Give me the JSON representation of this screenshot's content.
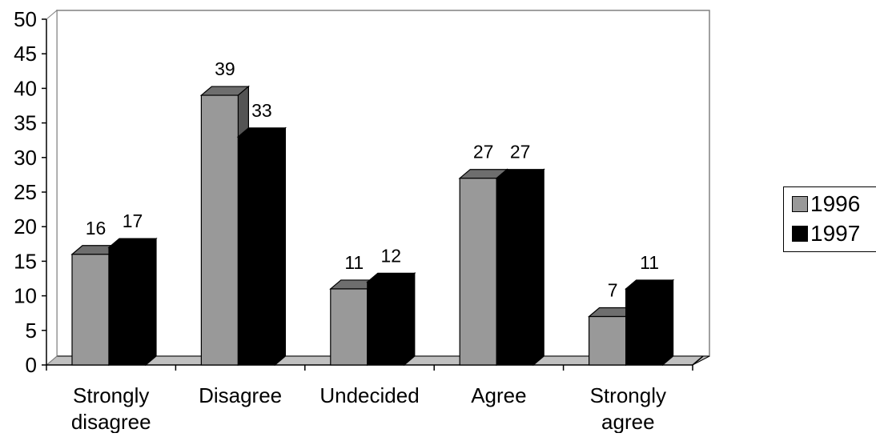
{
  "chart_data": {
    "type": "bar",
    "categories": [
      [
        "Strongly",
        "disagree"
      ],
      [
        "Disagree"
      ],
      [
        "Undecided"
      ],
      [
        "Agree"
      ],
      [
        "Strongly",
        "agree"
      ]
    ],
    "series": [
      {
        "name": "1996",
        "values": [
          16,
          39,
          11,
          27,
          7
        ],
        "color": "#999999"
      },
      {
        "name": "1997",
        "values": [
          17,
          33,
          12,
          27,
          11
        ],
        "color": "#000000"
      }
    ],
    "yticks": [
      "0",
      "5",
      "10",
      "15",
      "20",
      "25",
      "30",
      "35",
      "40",
      "45",
      "50"
    ],
    "ylim": [
      0,
      50
    ],
    "title": "",
    "xlabel": "",
    "ylabel": "",
    "legend_position": "right",
    "grid": false,
    "three_d": true
  }
}
